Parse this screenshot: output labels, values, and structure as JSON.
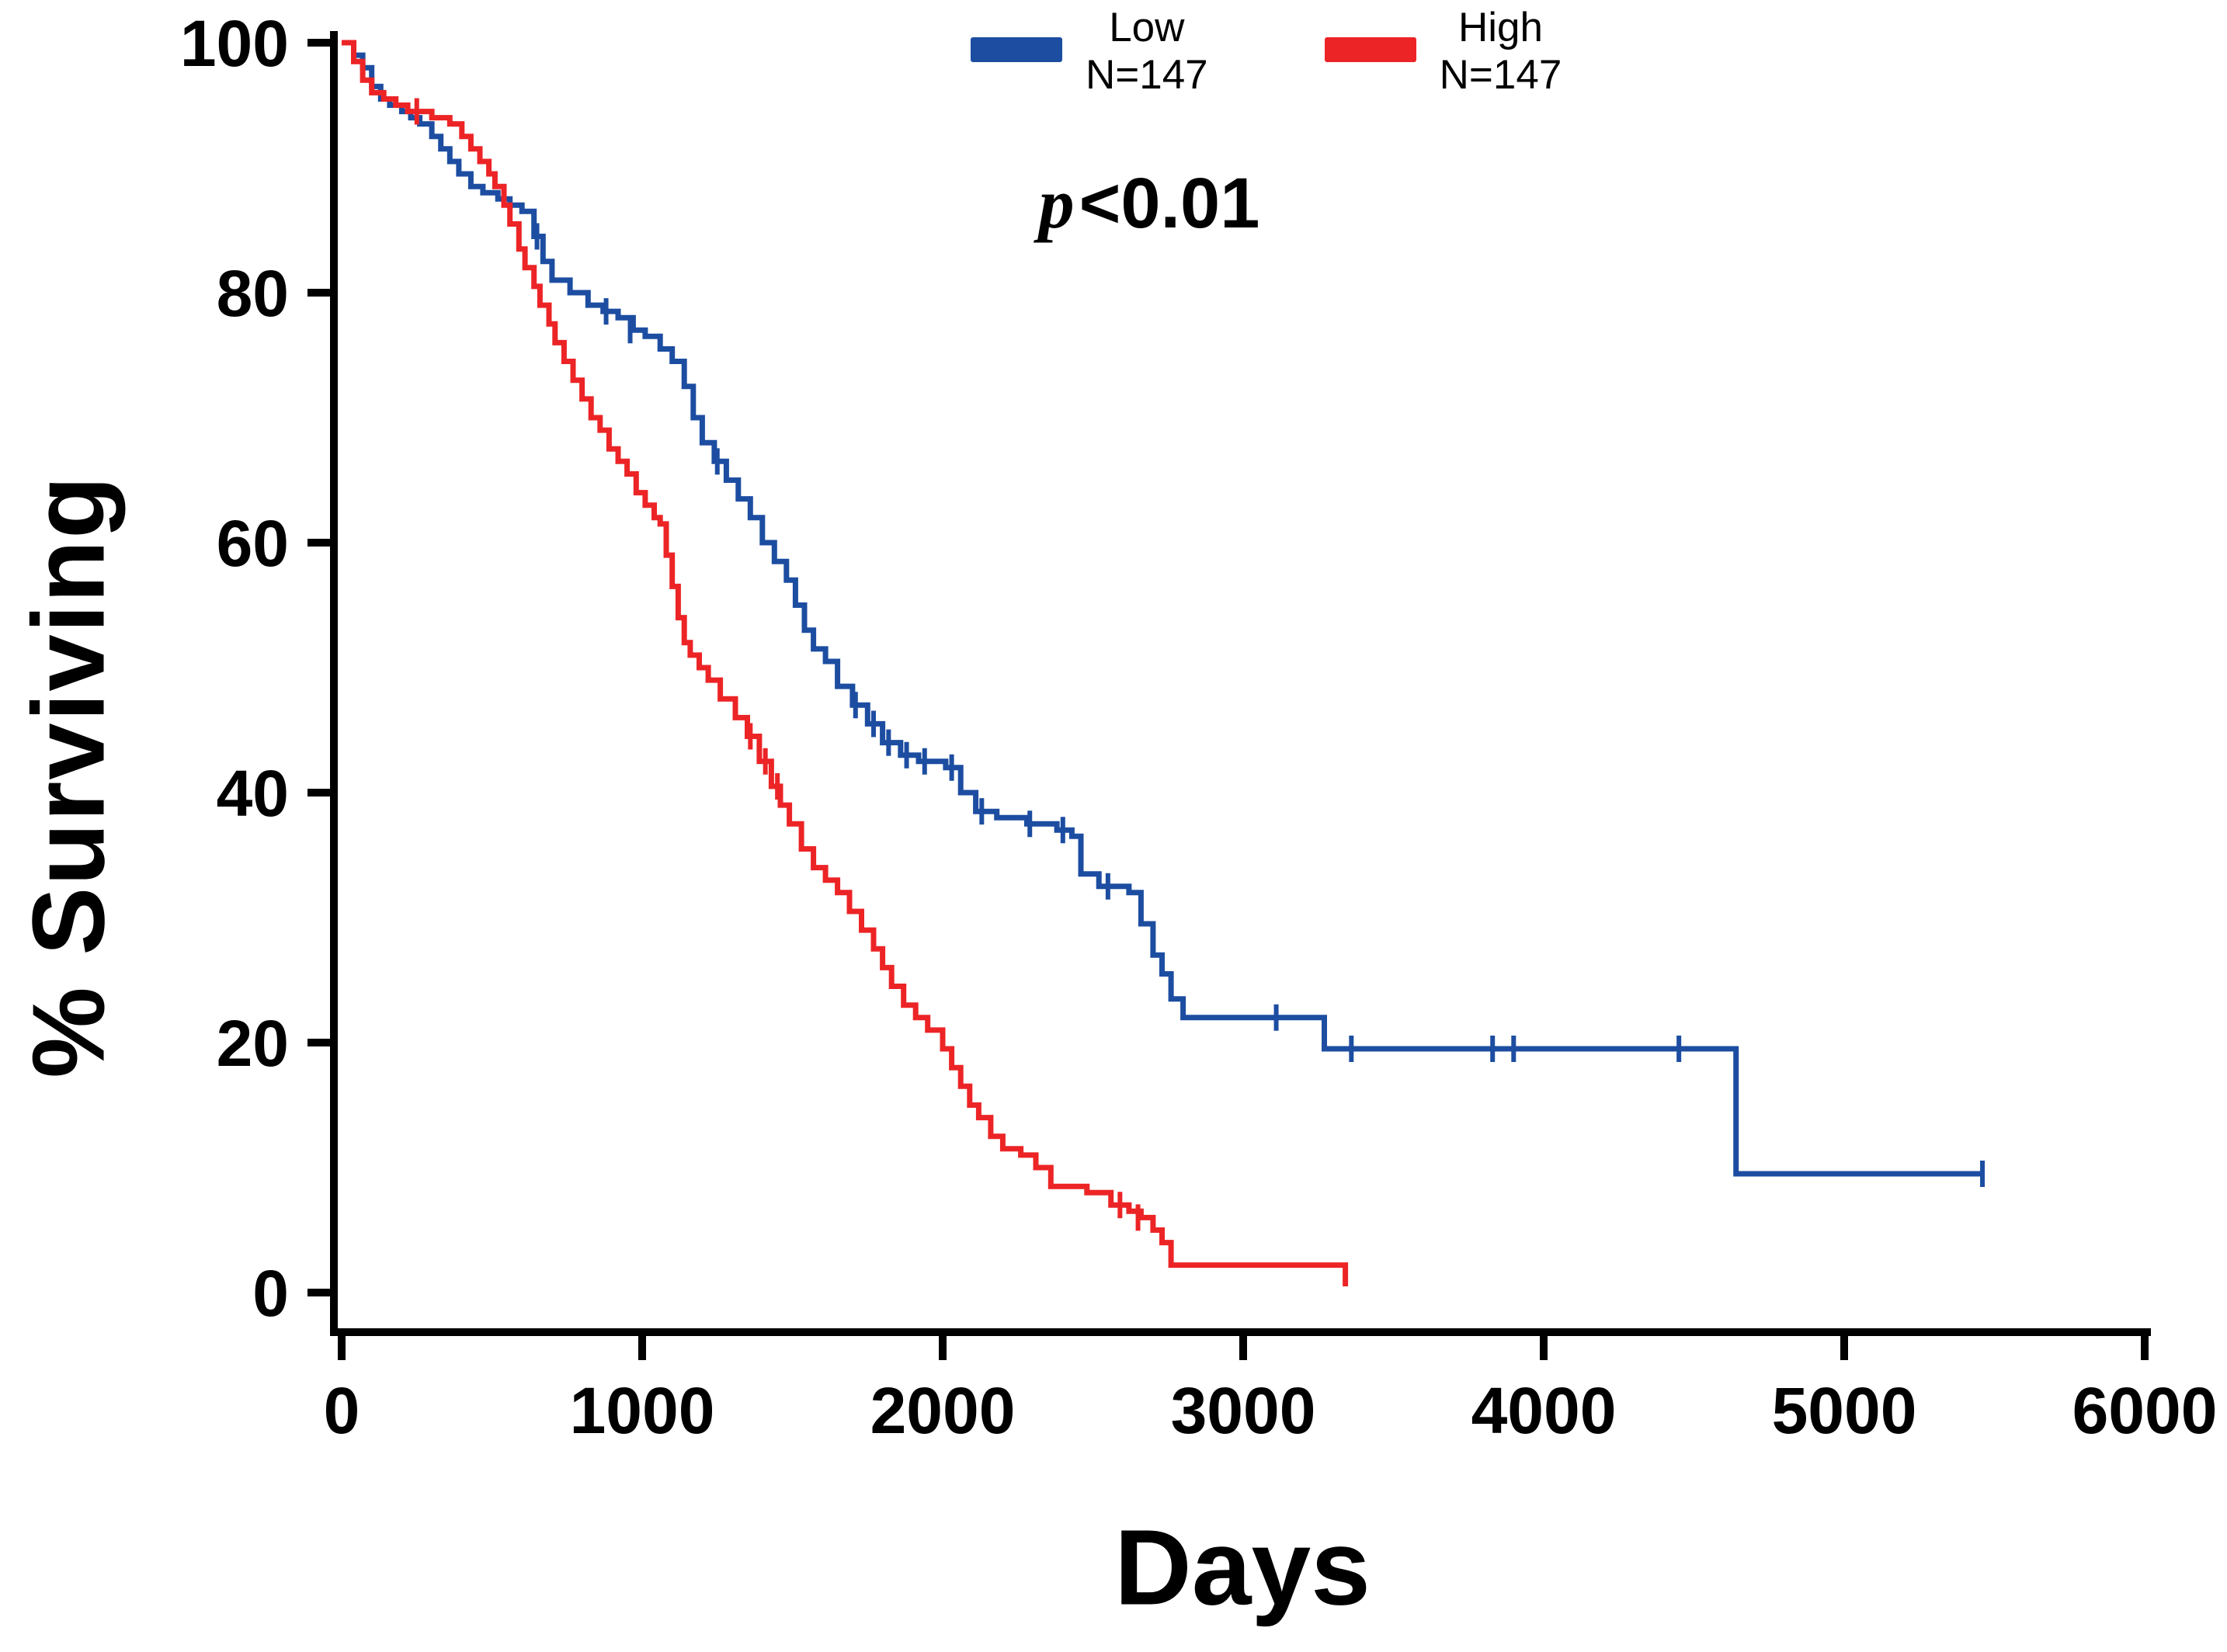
{
  "legend": {
    "items": [
      {
        "label": "Low",
        "n_label": "N=147",
        "color": "#1c4da1"
      },
      {
        "label": "High",
        "n_label": "N=147",
        "color": "#ec2426"
      }
    ],
    "p_italic": "p",
    "p_value": "<0.01"
  },
  "chart_data": {
    "type": "line",
    "subtype": "kaplan-meier-step",
    "title": "",
    "xlabel": "Days",
    "ylabel": "% Surviving",
    "xlim": [
      0,
      6000
    ],
    "ylim": [
      0,
      100
    ],
    "x_ticks": [
      0,
      1000,
      2000,
      3000,
      4000,
      5000,
      6000
    ],
    "y_ticks": [
      0,
      20,
      40,
      60,
      80,
      100
    ],
    "grid": false,
    "legend_position": "top-center",
    "annotations": [
      "p<0.01"
    ],
    "series": [
      {
        "name": "Low",
        "n": 147,
        "color": "#1c4da1",
        "points": [
          [
            0,
            100
          ],
          [
            40,
            99
          ],
          [
            70,
            98
          ],
          [
            100,
            96.5
          ],
          [
            130,
            95.5
          ],
          [
            160,
            95
          ],
          [
            200,
            94.5
          ],
          [
            230,
            94
          ],
          [
            260,
            93.5
          ],
          [
            300,
            92.5
          ],
          [
            330,
            91.5
          ],
          [
            360,
            90.5
          ],
          [
            390,
            89.5
          ],
          [
            430,
            88.5
          ],
          [
            470,
            88
          ],
          [
            520,
            87.5
          ],
          [
            560,
            87
          ],
          [
            600,
            86.5
          ],
          [
            640,
            84.5
          ],
          [
            670,
            82.5
          ],
          [
            700,
            81
          ],
          [
            760,
            80
          ],
          [
            820,
            79
          ],
          [
            870,
            78.5
          ],
          [
            920,
            78
          ],
          [
            970,
            77
          ],
          [
            1010,
            76.5
          ],
          [
            1060,
            75.5
          ],
          [
            1100,
            74.5
          ],
          [
            1140,
            72.5
          ],
          [
            1170,
            70
          ],
          [
            1200,
            68
          ],
          [
            1240,
            66.5
          ],
          [
            1280,
            65
          ],
          [
            1320,
            63.5
          ],
          [
            1360,
            62
          ],
          [
            1400,
            60
          ],
          [
            1440,
            58.5
          ],
          [
            1480,
            57
          ],
          [
            1510,
            55
          ],
          [
            1540,
            53
          ],
          [
            1570,
            51.5
          ],
          [
            1610,
            50.5
          ],
          [
            1650,
            48.5
          ],
          [
            1700,
            47
          ],
          [
            1750,
            45.5
          ],
          [
            1800,
            44
          ],
          [
            1860,
            43
          ],
          [
            1920,
            42.5
          ],
          [
            2010,
            42
          ],
          [
            2060,
            40
          ],
          [
            2110,
            38.5
          ],
          [
            2180,
            38
          ],
          [
            2280,
            37.5
          ],
          [
            2380,
            37
          ],
          [
            2430,
            36.5
          ],
          [
            2460,
            33.5
          ],
          [
            2520,
            32.5
          ],
          [
            2620,
            32
          ],
          [
            2660,
            29.5
          ],
          [
            2700,
            27
          ],
          [
            2730,
            25.5
          ],
          [
            2760,
            23.5
          ],
          [
            2800,
            22
          ],
          [
            3230,
            22
          ],
          [
            3270,
            19.5
          ],
          [
            4600,
            19.5
          ],
          [
            4640,
            9.5
          ],
          [
            5460,
            9.5
          ]
        ],
        "censors": [
          [
            650,
            84.5
          ],
          [
            880,
            78.5
          ],
          [
            960,
            77
          ],
          [
            1250,
            66.5
          ],
          [
            1710,
            47
          ],
          [
            1770,
            45.5
          ],
          [
            1820,
            44
          ],
          [
            1880,
            43
          ],
          [
            1940,
            42.5
          ],
          [
            2030,
            42
          ],
          [
            2130,
            38.5
          ],
          [
            2290,
            37.5
          ],
          [
            2400,
            37
          ],
          [
            2550,
            32.5
          ],
          [
            3110,
            22
          ],
          [
            3360,
            19.5
          ],
          [
            3830,
            19.5
          ],
          [
            3900,
            19.5
          ],
          [
            4450,
            19.5
          ],
          [
            5460,
            9.5
          ]
        ]
      },
      {
        "name": "High",
        "n": 147,
        "color": "#ec2426",
        "points": [
          [
            0,
            100
          ],
          [
            40,
            98.5
          ],
          [
            70,
            97
          ],
          [
            100,
            96
          ],
          [
            140,
            95.5
          ],
          [
            180,
            95
          ],
          [
            220,
            94.5
          ],
          [
            300,
            94
          ],
          [
            360,
            93.5
          ],
          [
            400,
            92.5
          ],
          [
            430,
            91.5
          ],
          [
            460,
            90.5
          ],
          [
            490,
            89.5
          ],
          [
            510,
            88.5
          ],
          [
            540,
            87
          ],
          [
            560,
            85.5
          ],
          [
            590,
            83.5
          ],
          [
            610,
            82
          ],
          [
            640,
            80.5
          ],
          [
            660,
            79
          ],
          [
            690,
            77.5
          ],
          [
            710,
            76
          ],
          [
            740,
            74.5
          ],
          [
            770,
            73
          ],
          [
            800,
            71.5
          ],
          [
            830,
            70
          ],
          [
            860,
            69
          ],
          [
            890,
            67.5
          ],
          [
            920,
            66.5
          ],
          [
            950,
            65.5
          ],
          [
            980,
            64
          ],
          [
            1010,
            63
          ],
          [
            1040,
            62
          ],
          [
            1060,
            61.5
          ],
          [
            1080,
            59
          ],
          [
            1100,
            56.5
          ],
          [
            1120,
            54
          ],
          [
            1140,
            52
          ],
          [
            1160,
            51
          ],
          [
            1190,
            50
          ],
          [
            1220,
            49
          ],
          [
            1260,
            47.5
          ],
          [
            1310,
            46
          ],
          [
            1350,
            44.5
          ],
          [
            1390,
            42.5
          ],
          [
            1430,
            40.5
          ],
          [
            1460,
            39
          ],
          [
            1490,
            37.5
          ],
          [
            1530,
            35.5
          ],
          [
            1570,
            34
          ],
          [
            1610,
            33
          ],
          [
            1650,
            32
          ],
          [
            1690,
            30.5
          ],
          [
            1730,
            29
          ],
          [
            1770,
            27.5
          ],
          [
            1800,
            26
          ],
          [
            1830,
            24.5
          ],
          [
            1870,
            23
          ],
          [
            1910,
            22
          ],
          [
            1950,
            21
          ],
          [
            2000,
            19.5
          ],
          [
            2030,
            18
          ],
          [
            2060,
            16.5
          ],
          [
            2090,
            15
          ],
          [
            2120,
            14
          ],
          [
            2160,
            12.5
          ],
          [
            2200,
            11.5
          ],
          [
            2260,
            11
          ],
          [
            2310,
            10
          ],
          [
            2360,
            8.5
          ],
          [
            2480,
            8
          ],
          [
            2560,
            7
          ],
          [
            2620,
            6.5
          ],
          [
            2660,
            6
          ],
          [
            2700,
            5
          ],
          [
            2730,
            4
          ],
          [
            2760,
            2.2
          ],
          [
            3340,
            0.5
          ]
        ],
        "censors": [
          [
            250,
            94.5
          ],
          [
            1360,
            44.5
          ],
          [
            1410,
            42.5
          ],
          [
            1450,
            40.5
          ],
          [
            2590,
            7
          ],
          [
            2650,
            6
          ]
        ]
      }
    ]
  }
}
